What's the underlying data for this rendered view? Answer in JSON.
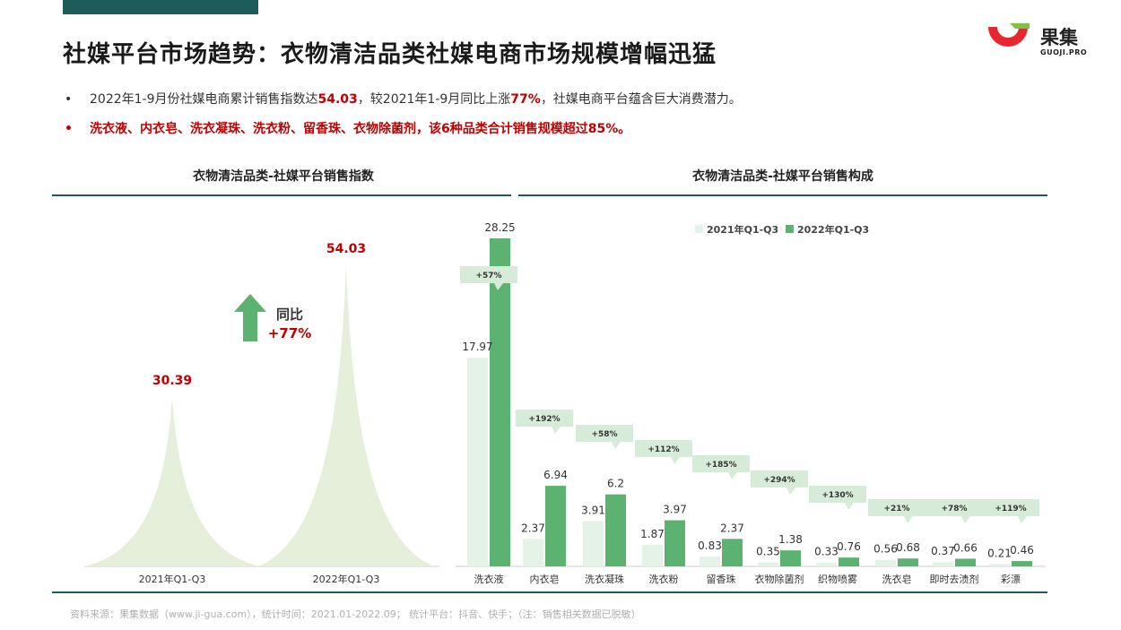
{
  "header": {
    "title": "社媒平台市场趋势：衣物清洁品类社媒电商市场规模增幅迅猛"
  },
  "logo": {
    "name": "果集",
    "domain": "GUOJI.PRO",
    "colors": {
      "red": "#e8262f",
      "green": "#7dc242"
    }
  },
  "bullets": {
    "b1_part1": "2022年1-9月份社媒电商累计销售指数达",
    "b1_value1": "54.03",
    "b1_part2": "，较2021年1-9月同比上涨",
    "b1_value2": "77%",
    "b1_part3": "，社媒电商平台蕴含巨大消费潜力。",
    "b2": "洗衣液、内衣皂、洗衣凝珠、洗衣粉、留香珠、衣物除菌剂，该6种品类合计销售规模超过85%。"
  },
  "panels": {
    "left_title": "衣物清洁品类-社媒平台销售指数",
    "right_title": "衣物清洁品类-社媒平台销售构成"
  },
  "footnote": "资料来源：果集数据（www.ji-gua.com），统计时间：2021.01-2022.09；    统计平台：抖音、快手；（注：销售相关数据已脱敏）",
  "chart_data": [
    {
      "type": "area",
      "categories": [
        "2021年Q1-Q3",
        "2022年Q1-Q3"
      ],
      "values": [
        30.39,
        54.03
      ],
      "value_labels": [
        "30.39",
        "54.03"
      ],
      "annotation": {
        "label": "同比",
        "value": "+77%"
      },
      "colors": {
        "fill": "#e6efd9",
        "label": "#c00000",
        "arrow": "#5cb270"
      },
      "grid": false
    },
    {
      "type": "bar",
      "categories": [
        "洗衣液",
        "内衣皂",
        "洗衣凝珠",
        "洗衣粉",
        "留香珠",
        "衣物除菌剂",
        "织物喷雾",
        "洗衣皂",
        "即时去渍剂",
        "彩漂"
      ],
      "series": [
        {
          "name": "2021年Q1-Q3",
          "values": [
            17.97,
            2.37,
            3.91,
            1.87,
            0.83,
            0.35,
            0.33,
            0.56,
            0.37,
            0.21
          ],
          "color": "#e4f2e8"
        },
        {
          "name": "2022年Q1-Q3",
          "values": [
            28.25,
            6.94,
            6.2,
            3.97,
            2.37,
            1.38,
            0.76,
            0.68,
            0.66,
            0.46
          ],
          "color": "#5cb270"
        }
      ],
      "value_labels_2021": [
        "17.97",
        "2.37",
        "3.91",
        "1.87",
        "0.83",
        "0.35",
        "0.33",
        "0.56",
        "0.37",
        "0.21"
      ],
      "value_labels_2022": [
        "28.25",
        "6.94",
        "6.2",
        "3.97",
        "2.37",
        "1.38",
        "0.76",
        "0.68",
        "0.66",
        "0.46"
      ],
      "growth_labels": [
        "+57%",
        "+192%",
        "+58%",
        "+112%",
        "+185%",
        "+294%",
        "+130%",
        "+21%",
        "+78%",
        "+119%"
      ],
      "callout_color": "#d7ecd8",
      "legend": "top",
      "grid": false
    }
  ]
}
